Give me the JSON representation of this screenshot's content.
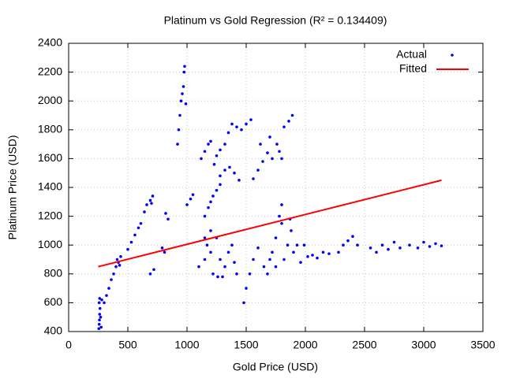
{
  "chart_data": {
    "type": "scatter",
    "title": "Platinum vs Gold Regression (R² = 0.134409)",
    "x_label": "Gold Price (USD)",
    "y_label": "Platinum Price (USD)",
    "xlim": [
      0,
      3500
    ],
    "xticks": [
      0,
      500,
      1000,
      1500,
      2000,
      2500,
      3000,
      3500
    ],
    "ylim": [
      400,
      2400
    ],
    "yticks": [
      400,
      600,
      800,
      1000,
      1200,
      1400,
      1600,
      1800,
      2000,
      2200,
      2400
    ],
    "grid": true,
    "legend": "top-right",
    "series": [
      {
        "name": "Actual",
        "color": "#0000ff",
        "mark": "point",
        "x": [
          255,
          258,
          260,
          262,
          265,
          258,
          262,
          270,
          275,
          280,
          300,
          320,
          340,
          360,
          380,
          400,
          420,
          410,
          440,
          430,
          500,
          530,
          560,
          590,
          610,
          640,
          660,
          690,
          710,
          700,
          690,
          720,
          790,
          810,
          820,
          840,
          920,
          930,
          940,
          950,
          960,
          970,
          980,
          990,
          975,
          1000,
          1030,
          1050,
          1100,
          1150,
          1170,
          1200,
          1220,
          1250,
          1280,
          1300,
          1320,
          1350,
          1380,
          1400,
          1420,
          1200,
          1260,
          1150,
          1150,
          1180,
          1200,
          1220,
          1250,
          1280,
          1120,
          1150,
          1180,
          1200,
          1230,
          1250,
          1280,
          1320,
          1360,
          1400,
          1440,
          1320,
          1350,
          1380,
          1420,
          1460,
          1500,
          1540,
          1280,
          1560,
          1600,
          1640,
          1680,
          1720,
          1760,
          1780,
          1620,
          1700,
          1800,
          1820,
          1860,
          1890,
          1480,
          1500,
          1530,
          1560,
          1600,
          1650,
          1680,
          1700,
          1720,
          1750,
          1780,
          1800,
          1820,
          1850,
          1880,
          1900,
          1930,
          1960,
          1990,
          1750,
          1800,
          1870,
          2020,
          2060,
          2100,
          2150,
          2200,
          2280,
          2320,
          2360,
          2400,
          2440,
          2550,
          2600,
          2650,
          2700,
          2750,
          2800,
          2880,
          2950,
          3000,
          3050,
          3100,
          3150
        ],
        "values": [
          420,
          450,
          480,
          520,
          560,
          600,
          630,
          500,
          430,
          620,
          600,
          650,
          700,
          760,
          800,
          850,
          880,
          900,
          920,
          860,
          970,
          1020,
          1070,
          1120,
          1150,
          1230,
          1280,
          1310,
          1340,
          1290,
          800,
          830,
          980,
          950,
          1220,
          1180,
          1700,
          1800,
          1900,
          2000,
          2050,
          2100,
          2240,
          1980,
          2200,
          1280,
          1320,
          1350,
          850,
          900,
          1000,
          950,
          800,
          1050,
          900,
          780,
          850,
          950,
          1000,
          880,
          800,
          1100,
          780,
          1050,
          1200,
          1260,
          1300,
          1340,
          1380,
          1420,
          1600,
          1650,
          1700,
          1720,
          1560,
          1620,
          1480,
          1520,
          1540,
          1500,
          1450,
          1700,
          1780,
          1840,
          1820,
          1800,
          1840,
          1870,
          1660,
          1460,
          1520,
          1580,
          1640,
          1600,
          1700,
          1650,
          1700,
          1750,
          1600,
          1820,
          1860,
          1900,
          600,
          700,
          800,
          900,
          980,
          850,
          800,
          900,
          950,
          1050,
          1200,
          1280,
          900,
          1000,
          1100,
          950,
          1000,
          880,
          1000,
          850,
          1150,
          1180,
          920,
          930,
          910,
          950,
          940,
          950,
          1000,
          1030,
          1060,
          1000,
          980,
          950,
          1000,
          970,
          1020,
          980,
          1000,
          980,
          1020,
          990,
          1010,
          995
        ]
      },
      {
        "name": "Fitted",
        "color": "#ff0000",
        "mark": "line",
        "x": [
          250,
          3150
        ],
        "values": [
          850,
          1450
        ]
      }
    ]
  }
}
